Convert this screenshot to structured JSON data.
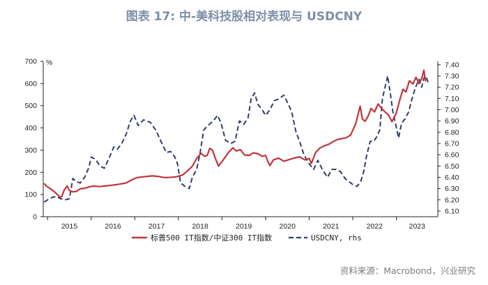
{
  "title": "图表 17: 中-美科技股相对表现与 USDCNY",
  "source": "资料来源：Macrobond，兴业研究",
  "chart_data": {
    "type": "line",
    "title": "图表 17: 中-美科技股相对表现与 USDCNY",
    "x_tick_labels": [
      "2015",
      "2016",
      "2017",
      "2018",
      "2019",
      "2020",
      "2021",
      "2022",
      "2023"
    ],
    "x_range": [
      2014.9,
      2023.95
    ],
    "y_left": {
      "unit_label": "%",
      "min": 0,
      "max": 700,
      "ticks": [
        "0",
        "100",
        "200",
        "300",
        "400",
        "500",
        "600",
        "700"
      ]
    },
    "y_right": {
      "unit_label": "",
      "min": 6.05,
      "max": 7.43,
      "ticks": [
        "6.10",
        "6.20",
        "6.30",
        "6.40",
        "6.50",
        "6.60",
        "6.70",
        "6.80",
        "6.90",
        "7.00",
        "7.10",
        "7.20",
        "7.30",
        "7.40"
      ]
    },
    "series": [
      {
        "name": "标普500 IT指数/中证300 IT指数",
        "axis": "left",
        "color": "#c0343d",
        "style": "solid",
        "points": [
          [
            2014.92,
            150
          ],
          [
            2014.97,
            138
          ],
          [
            2015.05,
            128
          ],
          [
            2015.12,
            118
          ],
          [
            2015.2,
            105
          ],
          [
            2015.28,
            88
          ],
          [
            2015.33,
            92
          ],
          [
            2015.38,
            120
          ],
          [
            2015.45,
            138
          ],
          [
            2015.5,
            118
          ],
          [
            2015.58,
            112
          ],
          [
            2015.66,
            114
          ],
          [
            2015.75,
            126
          ],
          [
            2015.85,
            128
          ],
          [
            2015.95,
            134
          ],
          [
            2016.05,
            138
          ],
          [
            2016.2,
            136
          ],
          [
            2016.4,
            140
          ],
          [
            2016.6,
            145
          ],
          [
            2016.8,
            152
          ],
          [
            2016.95,
            168
          ],
          [
            2017.05,
            176
          ],
          [
            2017.2,
            180
          ],
          [
            2017.4,
            184
          ],
          [
            2017.55,
            181
          ],
          [
            2017.7,
            176
          ],
          [
            2017.85,
            178
          ],
          [
            2017.95,
            180
          ],
          [
            2018.1,
            188
          ],
          [
            2018.2,
            205
          ],
          [
            2018.32,
            228
          ],
          [
            2018.42,
            262
          ],
          [
            2018.52,
            286
          ],
          [
            2018.6,
            272
          ],
          [
            2018.66,
            276
          ],
          [
            2018.72,
            308
          ],
          [
            2018.78,
            300
          ],
          [
            2018.85,
            262
          ],
          [
            2018.92,
            228
          ],
          [
            2019.0,
            248
          ],
          [
            2019.08,
            270
          ],
          [
            2019.15,
            290
          ],
          [
            2019.25,
            310
          ],
          [
            2019.33,
            296
          ],
          [
            2019.42,
            302
          ],
          [
            2019.52,
            278
          ],
          [
            2019.62,
            276
          ],
          [
            2019.72,
            288
          ],
          [
            2019.82,
            284
          ],
          [
            2019.92,
            272
          ],
          [
            2020.0,
            276
          ],
          [
            2020.05,
            250
          ],
          [
            2020.1,
            230
          ],
          [
            2020.18,
            256
          ],
          [
            2020.3,
            264
          ],
          [
            2020.42,
            250
          ],
          [
            2020.55,
            258
          ],
          [
            2020.65,
            264
          ],
          [
            2020.78,
            270
          ],
          [
            2020.9,
            256
          ],
          [
            2021.0,
            262
          ],
          [
            2021.05,
            240
          ],
          [
            2021.15,
            290
          ],
          [
            2021.25,
            310
          ],
          [
            2021.35,
            320
          ],
          [
            2021.45,
            326
          ],
          [
            2021.55,
            338
          ],
          [
            2021.65,
            348
          ],
          [
            2021.75,
            352
          ],
          [
            2021.85,
            356
          ],
          [
            2021.95,
            368
          ],
          [
            2022.02,
            398
          ],
          [
            2022.07,
            420
          ],
          [
            2022.12,
            460
          ],
          [
            2022.17,
            498
          ],
          [
            2022.22,
            440
          ],
          [
            2022.28,
            430
          ],
          [
            2022.35,
            452
          ],
          [
            2022.42,
            488
          ],
          [
            2022.5,
            472
          ],
          [
            2022.58,
            508
          ],
          [
            2022.66,
            488
          ],
          [
            2022.74,
            472
          ],
          [
            2022.82,
            458
          ],
          [
            2022.9,
            428
          ],
          [
            2023.0,
            468
          ],
          [
            2023.08,
            528
          ],
          [
            2023.15,
            574
          ],
          [
            2023.22,
            562
          ],
          [
            2023.3,
            612
          ],
          [
            2023.38,
            598
          ],
          [
            2023.45,
            628
          ],
          [
            2023.52,
            600
          ],
          [
            2023.58,
            622
          ],
          [
            2023.63,
            660
          ],
          [
            2023.67,
            610
          ]
        ]
      },
      {
        "name": "USDCNY, rhs",
        "axis": "right",
        "color": "#2e3e66",
        "style": "dashed",
        "points": [
          [
            2014.92,
            6.18
          ],
          [
            2015.0,
            6.2
          ],
          [
            2015.1,
            6.22
          ],
          [
            2015.2,
            6.23
          ],
          [
            2015.3,
            6.21
          ],
          [
            2015.4,
            6.2
          ],
          [
            2015.5,
            6.21
          ],
          [
            2015.58,
            6.39
          ],
          [
            2015.66,
            6.36
          ],
          [
            2015.75,
            6.35
          ],
          [
            2015.85,
            6.4
          ],
          [
            2015.95,
            6.49
          ],
          [
            2016.0,
            6.58
          ],
          [
            2016.1,
            6.56
          ],
          [
            2016.2,
            6.5
          ],
          [
            2016.3,
            6.48
          ],
          [
            2016.42,
            6.58
          ],
          [
            2016.52,
            6.67
          ],
          [
            2016.6,
            6.65
          ],
          [
            2016.7,
            6.7
          ],
          [
            2016.8,
            6.78
          ],
          [
            2016.9,
            6.9
          ],
          [
            2016.98,
            6.95
          ],
          [
            2017.08,
            6.86
          ],
          [
            2017.2,
            6.91
          ],
          [
            2017.35,
            6.89
          ],
          [
            2017.48,
            6.82
          ],
          [
            2017.6,
            6.72
          ],
          [
            2017.72,
            6.62
          ],
          [
            2017.82,
            6.63
          ],
          [
            2017.92,
            6.58
          ],
          [
            2017.98,
            6.52
          ],
          [
            2018.05,
            6.35
          ],
          [
            2018.15,
            6.32
          ],
          [
            2018.25,
            6.3
          ],
          [
            2018.32,
            6.4
          ],
          [
            2018.42,
            6.47
          ],
          [
            2018.5,
            6.62
          ],
          [
            2018.58,
            6.82
          ],
          [
            2018.68,
            6.86
          ],
          [
            2018.8,
            6.9
          ],
          [
            2018.9,
            6.95
          ],
          [
            2018.98,
            6.88
          ],
          [
            2019.08,
            6.73
          ],
          [
            2019.2,
            6.7
          ],
          [
            2019.3,
            6.72
          ],
          [
            2019.4,
            6.9
          ],
          [
            2019.5,
            6.87
          ],
          [
            2019.6,
            6.93
          ],
          [
            2019.67,
            7.1
          ],
          [
            2019.75,
            7.15
          ],
          [
            2019.82,
            7.05
          ],
          [
            2019.92,
            7.0
          ],
          [
            2020.0,
            6.95
          ],
          [
            2020.1,
            7.0
          ],
          [
            2020.2,
            7.08
          ],
          [
            2020.32,
            7.1
          ],
          [
            2020.42,
            7.13
          ],
          [
            2020.52,
            7.05
          ],
          [
            2020.6,
            6.98
          ],
          [
            2020.7,
            6.8
          ],
          [
            2020.78,
            6.72
          ],
          [
            2020.88,
            6.6
          ],
          [
            2020.98,
            6.53
          ],
          [
            2021.1,
            6.47
          ],
          [
            2021.2,
            6.55
          ],
          [
            2021.3,
            6.47
          ],
          [
            2021.42,
            6.4
          ],
          [
            2021.52,
            6.47
          ],
          [
            2021.62,
            6.47
          ],
          [
            2021.72,
            6.45
          ],
          [
            2021.82,
            6.39
          ],
          [
            2021.92,
            6.36
          ],
          [
            2022.02,
            6.33
          ],
          [
            2022.1,
            6.32
          ],
          [
            2022.18,
            6.36
          ],
          [
            2022.25,
            6.45
          ],
          [
            2022.32,
            6.6
          ],
          [
            2022.4,
            6.72
          ],
          [
            2022.48,
            6.72
          ],
          [
            2022.55,
            6.76
          ],
          [
            2022.62,
            6.82
          ],
          [
            2022.68,
            7.1
          ],
          [
            2022.74,
            7.2
          ],
          [
            2022.8,
            7.3
          ],
          [
            2022.86,
            7.15
          ],
          [
            2022.92,
            6.98
          ],
          [
            2022.98,
            6.88
          ],
          [
            2023.05,
            6.75
          ],
          [
            2023.12,
            6.88
          ],
          [
            2023.2,
            6.92
          ],
          [
            2023.28,
            6.98
          ],
          [
            2023.36,
            7.1
          ],
          [
            2023.44,
            7.2
          ],
          [
            2023.52,
            7.27
          ],
          [
            2023.58,
            7.2
          ],
          [
            2023.63,
            7.28
          ],
          [
            2023.68,
            7.3
          ],
          [
            2023.72,
            7.25
          ],
          [
            2023.77,
            7.25
          ]
        ]
      }
    ],
    "legend": {
      "position": "bottom",
      "entries": [
        "标普500 IT指数/中证300 IT指数",
        "USDCNY, rhs"
      ]
    }
  }
}
